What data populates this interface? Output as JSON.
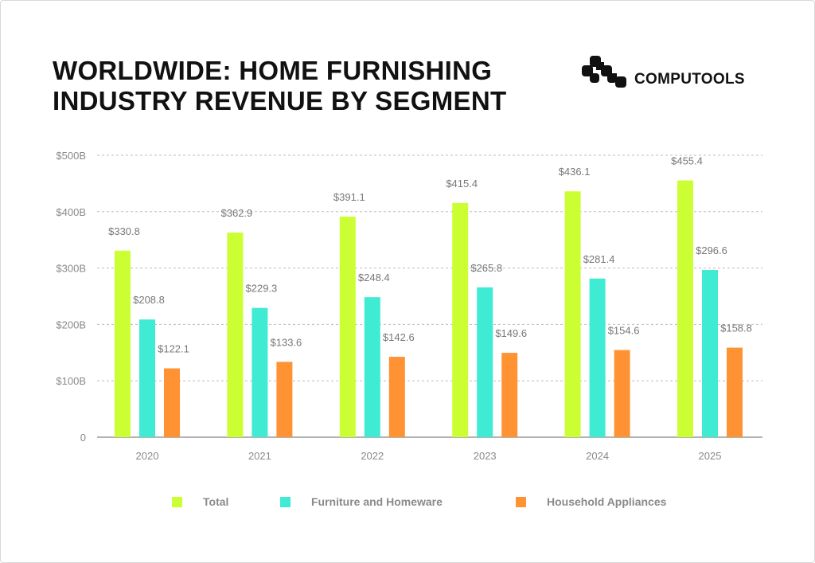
{
  "header": {
    "title_line1": "WORLDWIDE: HOME FURNISHING",
    "title_line2": "INDUSTRY REVENUE BY SEGMENT",
    "brand": "COMPUTOOLS"
  },
  "chart_data": {
    "type": "bar",
    "title": "WORLDWIDE: HOME FURNISHING INDUSTRY REVENUE BY SEGMENT",
    "categories": [
      "2020",
      "2021",
      "2022",
      "2023",
      "2024",
      "2025"
    ],
    "series": [
      {
        "name": "Total",
        "color": "#ccff33",
        "values": [
          330.8,
          362.9,
          391.1,
          415.4,
          436.1,
          455.4
        ],
        "labels": [
          "$330.8",
          "$362.9",
          "$391.1",
          "$415.4",
          "$436.1",
          "$455.4"
        ]
      },
      {
        "name": "Furniture and Homeware",
        "color": "#40ebd4",
        "values": [
          208.8,
          229.3,
          248.4,
          265.8,
          281.4,
          296.6
        ],
        "labels": [
          "$208.8",
          "$229.3",
          "$248.4",
          "$265.8",
          "$281.4",
          "$296.6"
        ]
      },
      {
        "name": "Household Appliances",
        "color": "#ff9333",
        "values": [
          122.1,
          133.6,
          142.6,
          149.6,
          154.6,
          158.8
        ],
        "labels": [
          "$122.1",
          "$133.6",
          "$142.6",
          "$149.6",
          "$154.6",
          "$158.8"
        ]
      }
    ],
    "yticks": [
      0,
      100,
      200,
      300,
      400,
      500
    ],
    "ytick_labels": [
      "0",
      "$100B",
      "$200B",
      "$300B",
      "$400B",
      "$500B"
    ],
    "ylim": [
      0,
      500
    ],
    "xlabel": "",
    "ylabel": "",
    "grid": true,
    "legend": "bottom"
  }
}
